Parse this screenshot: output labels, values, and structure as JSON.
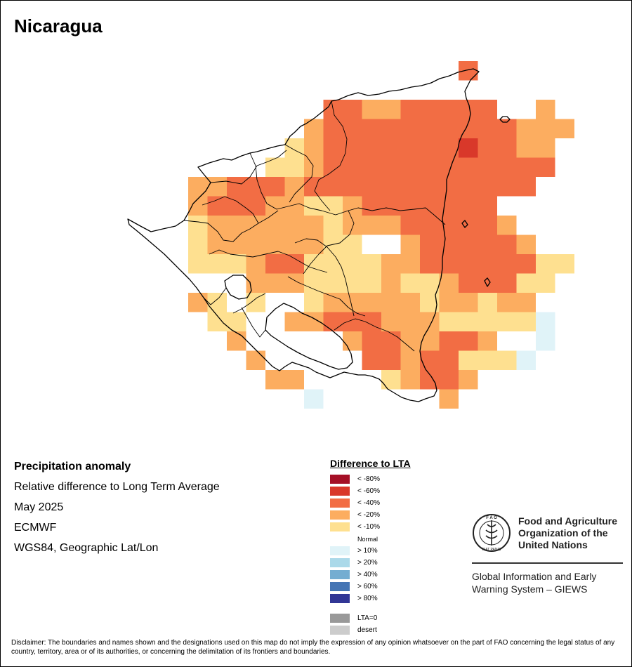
{
  "page": {
    "title": "Nicaragua"
  },
  "info": {
    "heading": "Precipitation anomaly",
    "subtitle": "Relative difference to Long Term Average",
    "date": "May 2025",
    "source": "ECMWF",
    "projection": "WGS84, Geographic Lat/Lon"
  },
  "legend": {
    "title": "Difference to LTA",
    "items": [
      {
        "label": "< -80%",
        "color": "#a50f26"
      },
      {
        "label": "< -60%",
        "color": "#d9382a"
      },
      {
        "label": "< -40%",
        "color": "#f26d44"
      },
      {
        "label": "< -20%",
        "color": "#fcad60"
      },
      {
        "label": "< -10%",
        "color": "#fee090"
      },
      {
        "label": "Normal",
        "color": "#ffffff"
      },
      {
        "label": "> 10%",
        "color": "#e0f3f8"
      },
      {
        "label": "> 20%",
        "color": "#abd9e9"
      },
      {
        "label": "> 40%",
        "color": "#74add1"
      },
      {
        "label": "> 60%",
        "color": "#4575b4"
      },
      {
        "label": "> 80%",
        "color": "#313695"
      }
    ],
    "extra": [
      {
        "label": "LTA=0",
        "color": "#999999"
      },
      {
        "label": "desert",
        "color": "#cccccc"
      }
    ]
  },
  "map": {
    "region": "Nicaragua",
    "anomaly_classes": {
      "o": "< -40%",
      "r": "< -60%",
      "l": "< -20%",
      "y": "< -10%",
      "b": "> 10%"
    }
  },
  "org": {
    "name_line1": "Food and Agriculture",
    "name_line2": "Organization of the",
    "name_line3": "United Nations",
    "system_line1": "Global Information and Early",
    "system_line2": "Warning System – GIEWS",
    "logo_text": "FAO FIAT PANIS"
  },
  "disclaimer": "Disclaimer: The boundaries and names shown and the designations used on this map do not imply the expression of any opinion whatsoever on the part of FAO concerning the legal status of any country, territory, area or of its authorities, or concerning the delimitation of its frontiers and boundaries."
}
